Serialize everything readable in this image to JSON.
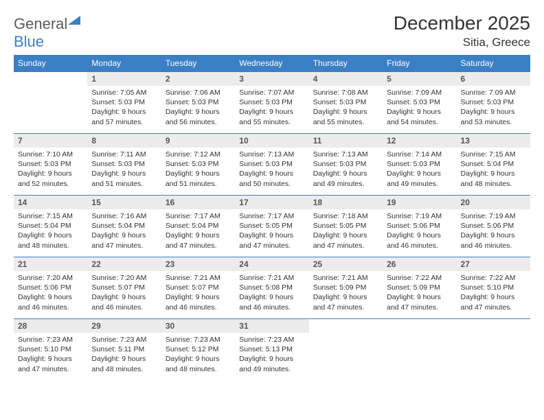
{
  "logo": {
    "part1": "General",
    "part2": "Blue"
  },
  "title": "December 2025",
  "location": "Sitia, Greece",
  "weekdays": [
    "Sunday",
    "Monday",
    "Tuesday",
    "Wednesday",
    "Thursday",
    "Friday",
    "Saturday"
  ],
  "colors": {
    "brand": "#3b7fc4",
    "header_bg": "#3b7fc4",
    "header_text": "#ffffff",
    "daynum_bg": "#ececec",
    "text": "#333333"
  },
  "start_weekday": 1,
  "days": [
    {
      "n": 1,
      "sunrise": "7:05 AM",
      "sunset": "5:03 PM",
      "daylight": "9 hours and 57 minutes."
    },
    {
      "n": 2,
      "sunrise": "7:06 AM",
      "sunset": "5:03 PM",
      "daylight": "9 hours and 56 minutes."
    },
    {
      "n": 3,
      "sunrise": "7:07 AM",
      "sunset": "5:03 PM",
      "daylight": "9 hours and 55 minutes."
    },
    {
      "n": 4,
      "sunrise": "7:08 AM",
      "sunset": "5:03 PM",
      "daylight": "9 hours and 55 minutes."
    },
    {
      "n": 5,
      "sunrise": "7:09 AM",
      "sunset": "5:03 PM",
      "daylight": "9 hours and 54 minutes."
    },
    {
      "n": 6,
      "sunrise": "7:09 AM",
      "sunset": "5:03 PM",
      "daylight": "9 hours and 53 minutes."
    },
    {
      "n": 7,
      "sunrise": "7:10 AM",
      "sunset": "5:03 PM",
      "daylight": "9 hours and 52 minutes."
    },
    {
      "n": 8,
      "sunrise": "7:11 AM",
      "sunset": "5:03 PM",
      "daylight": "9 hours and 51 minutes."
    },
    {
      "n": 9,
      "sunrise": "7:12 AM",
      "sunset": "5:03 PM",
      "daylight": "9 hours and 51 minutes."
    },
    {
      "n": 10,
      "sunrise": "7:13 AM",
      "sunset": "5:03 PM",
      "daylight": "9 hours and 50 minutes."
    },
    {
      "n": 11,
      "sunrise": "7:13 AM",
      "sunset": "5:03 PM",
      "daylight": "9 hours and 49 minutes."
    },
    {
      "n": 12,
      "sunrise": "7:14 AM",
      "sunset": "5:03 PM",
      "daylight": "9 hours and 49 minutes."
    },
    {
      "n": 13,
      "sunrise": "7:15 AM",
      "sunset": "5:04 PM",
      "daylight": "9 hours and 48 minutes."
    },
    {
      "n": 14,
      "sunrise": "7:15 AM",
      "sunset": "5:04 PM",
      "daylight": "9 hours and 48 minutes."
    },
    {
      "n": 15,
      "sunrise": "7:16 AM",
      "sunset": "5:04 PM",
      "daylight": "9 hours and 47 minutes."
    },
    {
      "n": 16,
      "sunrise": "7:17 AM",
      "sunset": "5:04 PM",
      "daylight": "9 hours and 47 minutes."
    },
    {
      "n": 17,
      "sunrise": "7:17 AM",
      "sunset": "5:05 PM",
      "daylight": "9 hours and 47 minutes."
    },
    {
      "n": 18,
      "sunrise": "7:18 AM",
      "sunset": "5:05 PM",
      "daylight": "9 hours and 47 minutes."
    },
    {
      "n": 19,
      "sunrise": "7:19 AM",
      "sunset": "5:06 PM",
      "daylight": "9 hours and 46 minutes."
    },
    {
      "n": 20,
      "sunrise": "7:19 AM",
      "sunset": "5:06 PM",
      "daylight": "9 hours and 46 minutes."
    },
    {
      "n": 21,
      "sunrise": "7:20 AM",
      "sunset": "5:06 PM",
      "daylight": "9 hours and 46 minutes."
    },
    {
      "n": 22,
      "sunrise": "7:20 AM",
      "sunset": "5:07 PM",
      "daylight": "9 hours and 46 minutes."
    },
    {
      "n": 23,
      "sunrise": "7:21 AM",
      "sunset": "5:07 PM",
      "daylight": "9 hours and 46 minutes."
    },
    {
      "n": 24,
      "sunrise": "7:21 AM",
      "sunset": "5:08 PM",
      "daylight": "9 hours and 46 minutes."
    },
    {
      "n": 25,
      "sunrise": "7:21 AM",
      "sunset": "5:09 PM",
      "daylight": "9 hours and 47 minutes."
    },
    {
      "n": 26,
      "sunrise": "7:22 AM",
      "sunset": "5:09 PM",
      "daylight": "9 hours and 47 minutes."
    },
    {
      "n": 27,
      "sunrise": "7:22 AM",
      "sunset": "5:10 PM",
      "daylight": "9 hours and 47 minutes."
    },
    {
      "n": 28,
      "sunrise": "7:23 AM",
      "sunset": "5:10 PM",
      "daylight": "9 hours and 47 minutes."
    },
    {
      "n": 29,
      "sunrise": "7:23 AM",
      "sunset": "5:11 PM",
      "daylight": "9 hours and 48 minutes."
    },
    {
      "n": 30,
      "sunrise": "7:23 AM",
      "sunset": "5:12 PM",
      "daylight": "9 hours and 48 minutes."
    },
    {
      "n": 31,
      "sunrise": "7:23 AM",
      "sunset": "5:13 PM",
      "daylight": "9 hours and 49 minutes."
    }
  ],
  "labels": {
    "sunrise": "Sunrise:",
    "sunset": "Sunset:",
    "daylight": "Daylight:"
  }
}
